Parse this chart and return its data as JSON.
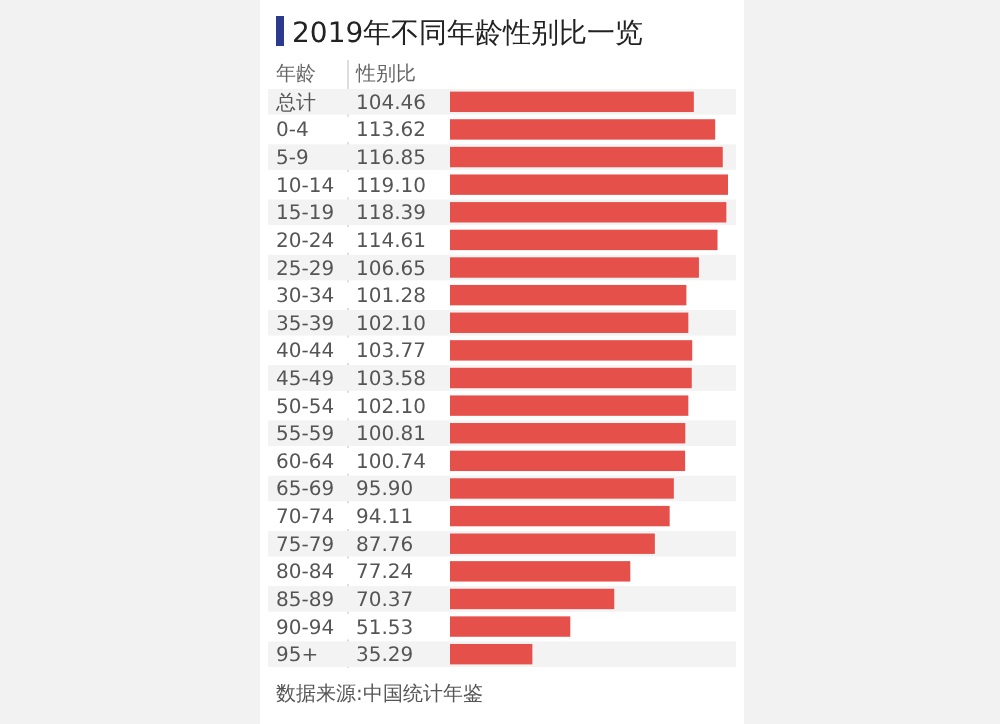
{
  "chart_data": {
    "type": "bar",
    "orientation": "horizontal",
    "title": "2019年不同年龄性别比一览",
    "ylabel": "年龄",
    "xlabel": "性别比",
    "categories": [
      "总计",
      "0-4",
      "5-9",
      "10-14",
      "15-19",
      "20-24",
      "25-29",
      "30-34",
      "35-39",
      "40-44",
      "45-49",
      "50-54",
      "55-59",
      "60-64",
      "65-69",
      "70-74",
      "75-79",
      "80-84",
      "85-89",
      "90-94",
      "95+"
    ],
    "values": [
      104.46,
      113.62,
      116.85,
      119.1,
      118.39,
      114.61,
      106.65,
      101.28,
      102.1,
      103.77,
      103.58,
      102.1,
      100.81,
      100.74,
      95.9,
      94.11,
      87.76,
      77.24,
      70.37,
      51.53,
      35.29
    ],
    "value_labels": [
      "104.46",
      "113.62",
      "116.85",
      "119.10",
      "118.39",
      "114.61",
      "106.65",
      "101.28",
      "102.10",
      "103.77",
      "103.58",
      "102.10",
      "100.81",
      "100.74",
      "95.90",
      "94.11",
      "87.76",
      "77.24",
      "70.37",
      "51.53",
      "35.29"
    ],
    "color": "#e6504a",
    "annotations": [
      "数据来源:中国统计年鉴"
    ]
  }
}
